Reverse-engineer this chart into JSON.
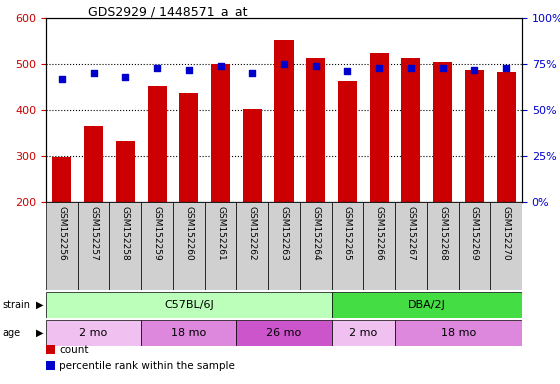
{
  "title": "GDS2929 / 1448571_a_at",
  "samples": [
    "GSM152256",
    "GSM152257",
    "GSM152258",
    "GSM152259",
    "GSM152260",
    "GSM152261",
    "GSM152262",
    "GSM152263",
    "GSM152264",
    "GSM152265",
    "GSM152266",
    "GSM152267",
    "GSM152268",
    "GSM152269",
    "GSM152270"
  ],
  "counts": [
    298,
    365,
    333,
    452,
    437,
    500,
    403,
    552,
    512,
    462,
    525,
    513,
    505,
    488,
    482
  ],
  "percentile_ranks": [
    67,
    70,
    68,
    73,
    72,
    74,
    70,
    75,
    74,
    71,
    73,
    73,
    73,
    72,
    73
  ],
  "ylim_left": [
    200,
    600
  ],
  "ylim_right": [
    0,
    100
  ],
  "yticks_left": [
    200,
    300,
    400,
    500,
    600
  ],
  "yticks_right": [
    0,
    25,
    50,
    75,
    100
  ],
  "bar_color": "#cc0000",
  "dot_color": "#0000cc",
  "bar_bottom": 200,
  "strain_groups": [
    {
      "label": "C57BL/6J",
      "start": 0,
      "end": 9,
      "color": "#bbffbb"
    },
    {
      "label": "DBA/2J",
      "start": 9,
      "end": 15,
      "color": "#44dd44"
    }
  ],
  "age_groups": [
    {
      "label": "2 mo",
      "start": 0,
      "end": 3,
      "color": "#f0c0f0"
    },
    {
      "label": "18 mo",
      "start": 3,
      "end": 6,
      "color": "#dd88dd"
    },
    {
      "label": "26 mo",
      "start": 6,
      "end": 9,
      "color": "#cc55cc"
    },
    {
      "label": "2 mo",
      "start": 9,
      "end": 11,
      "color": "#f0c0f0"
    },
    {
      "label": "18 mo",
      "start": 11,
      "end": 15,
      "color": "#dd88dd"
    }
  ],
  "legend_items": [
    {
      "label": "count",
      "color": "#cc0000"
    },
    {
      "label": "percentile rank within the sample",
      "color": "#0000cc"
    }
  ],
  "background_color": "#ffffff",
  "xlab_bg": "#d0d0d0",
  "axis_color_left": "#cc0000",
  "axis_color_right": "#0000cc"
}
